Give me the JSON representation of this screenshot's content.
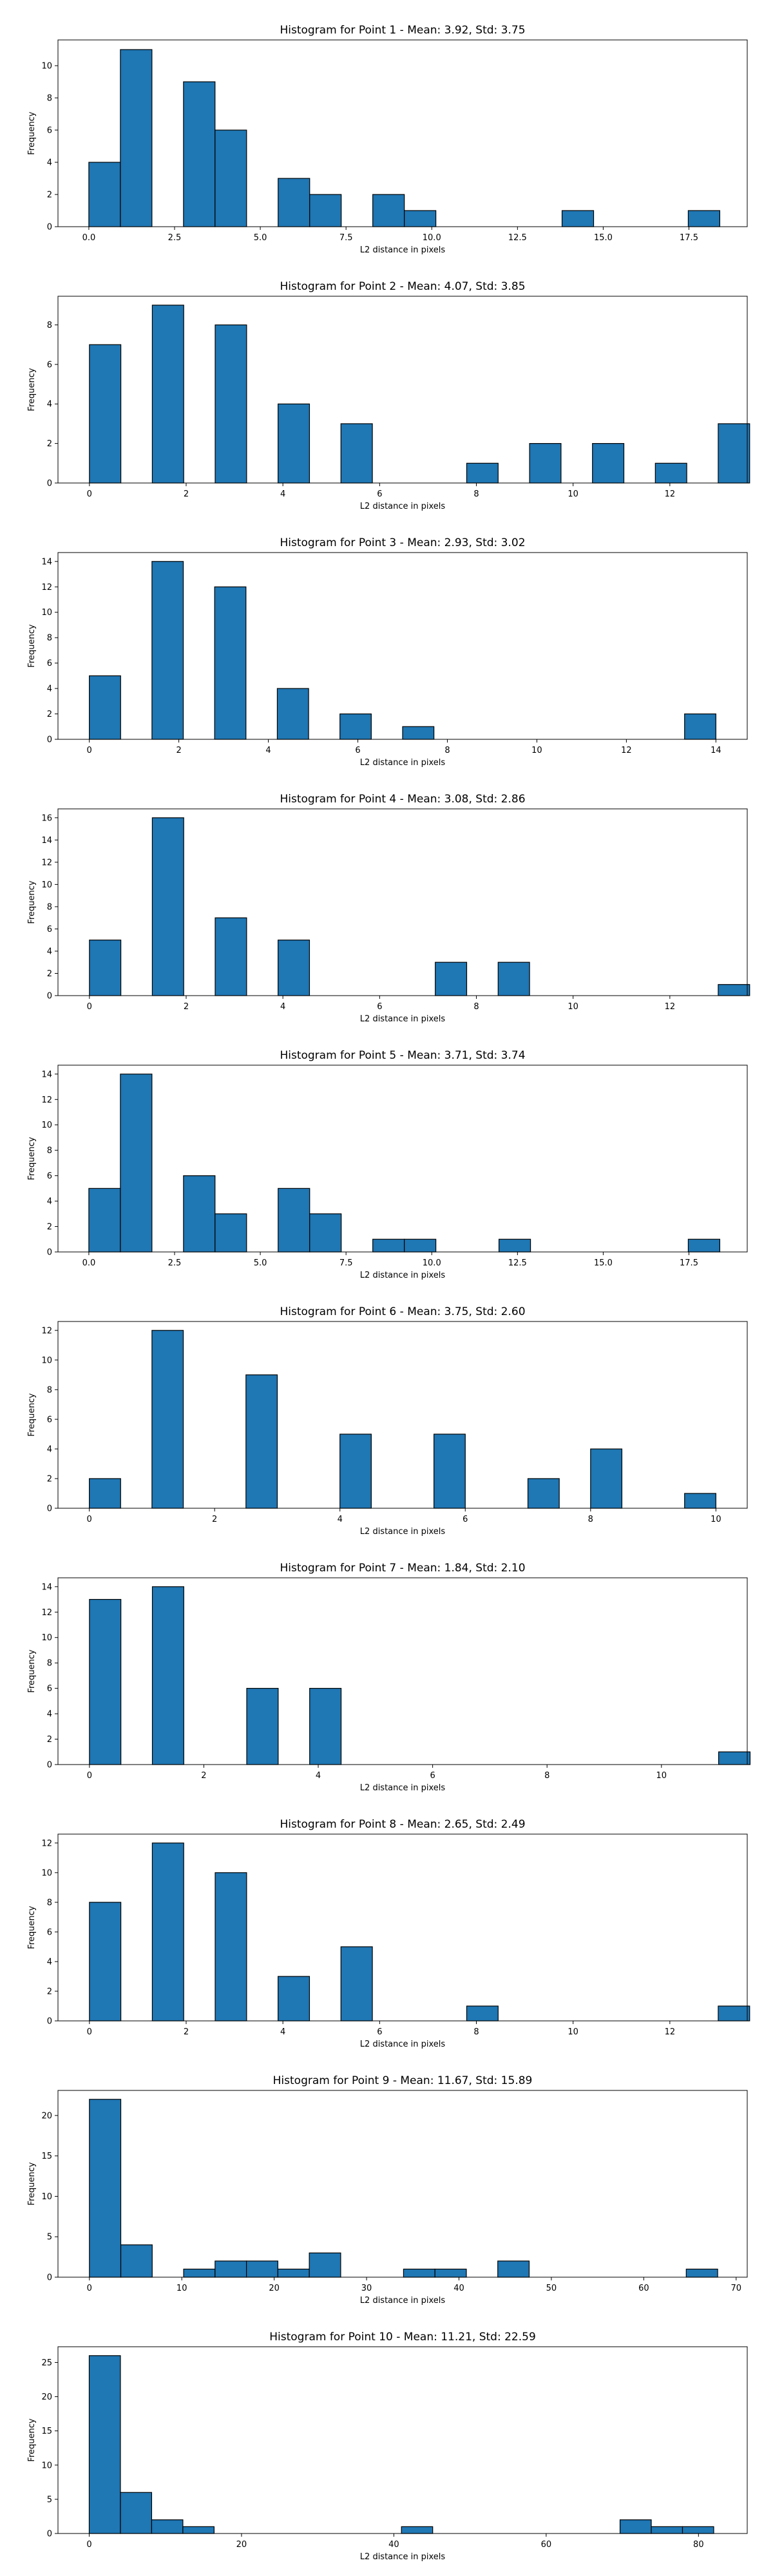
{
  "figure": {
    "background": "#ffffff",
    "bar_color": "#1f77b4",
    "edge_color": "#000000"
  },
  "chart_data": [
    {
      "type": "bar",
      "title": "Histogram for Point 1 - Mean: 3.92, Std: 3.75",
      "xlabel": "L2 distance in pixels",
      "ylabel": "Frequency",
      "xlim": [
        -0.9,
        19.2
      ],
      "ylim": [
        0,
        11.6
      ],
      "xticks": [
        0.0,
        2.5,
        5.0,
        7.5,
        10.0,
        12.5,
        15.0,
        17.5
      ],
      "xtick_labels": [
        "0.0",
        "2.5",
        "5.0",
        "7.5",
        "10.0",
        "12.5",
        "15.0",
        "17.5"
      ],
      "yticks": [
        0,
        2,
        4,
        6,
        8,
        10
      ],
      "bin_start": 0.0,
      "bin_width": 0.92,
      "counts": [
        4,
        11,
        0,
        9,
        6,
        0,
        3,
        2,
        0,
        2,
        1,
        0,
        0,
        0,
        0,
        1,
        0,
        0,
        0,
        1
      ]
    },
    {
      "type": "bar",
      "title": "Histogram for Point 2 - Mean: 4.07, Std: 3.85",
      "xlabel": "L2 distance in pixels",
      "ylabel": "Frequency",
      "xlim": [
        -0.65,
        13.6
      ],
      "ylim": [
        0,
        9.45
      ],
      "xticks": [
        0,
        2,
        4,
        6,
        8,
        10,
        12
      ],
      "xtick_labels": [
        "0",
        "2",
        "4",
        "6",
        "8",
        "10",
        "12"
      ],
      "yticks": [
        0,
        2,
        4,
        6,
        8
      ],
      "bin_start": 0.0,
      "bin_width": 0.65,
      "counts": [
        7,
        0,
        9,
        0,
        8,
        0,
        4,
        0,
        3,
        0,
        0,
        0,
        1,
        0,
        2,
        0,
        2,
        0,
        1,
        0,
        3
      ]
    },
    {
      "type": "bar",
      "title": "Histogram for Point 3 - Mean: 2.93, Std: 3.02",
      "xlabel": "L2 distance in pixels",
      "ylabel": "Frequency",
      "xlim": [
        -0.7,
        14.7
      ],
      "ylim": [
        0,
        14.7
      ],
      "xticks": [
        0,
        2,
        4,
        6,
        8,
        10,
        12,
        14
      ],
      "xtick_labels": [
        "0",
        "2",
        "4",
        "6",
        "8",
        "10",
        "12",
        "14"
      ],
      "yticks": [
        0,
        2,
        4,
        6,
        8,
        10,
        12,
        14
      ],
      "bin_start": 0.0,
      "bin_width": 0.7,
      "counts": [
        5,
        0,
        14,
        0,
        12,
        0,
        4,
        0,
        2,
        0,
        1,
        0,
        0,
        0,
        0,
        0,
        0,
        0,
        0,
        2
      ]
    },
    {
      "type": "bar",
      "title": "Histogram for Point 4 - Mean: 3.08, Std: 2.86",
      "xlabel": "L2 distance in pixels",
      "ylabel": "Frequency",
      "xlim": [
        -0.65,
        13.6
      ],
      "ylim": [
        0,
        16.8
      ],
      "xticks": [
        0,
        2,
        4,
        6,
        8,
        10,
        12
      ],
      "xtick_labels": [
        "0",
        "2",
        "4",
        "6",
        "8",
        "10",
        "12"
      ],
      "yticks": [
        0,
        2,
        4,
        6,
        8,
        10,
        12,
        14,
        16
      ],
      "bin_start": 0.0,
      "bin_width": 0.65,
      "counts": [
        5,
        0,
        16,
        0,
        7,
        0,
        5,
        0,
        0,
        0,
        0,
        3,
        0,
        3,
        0,
        0,
        0,
        0,
        0,
        0,
        1
      ]
    },
    {
      "type": "bar",
      "title": "Histogram for Point 5 - Mean: 3.71, Std: 3.74",
      "xlabel": "L2 distance in pixels",
      "ylabel": "Frequency",
      "xlim": [
        -0.9,
        19.2
      ],
      "ylim": [
        0,
        14.7
      ],
      "xticks": [
        0.0,
        2.5,
        5.0,
        7.5,
        10.0,
        12.5,
        15.0,
        17.5
      ],
      "xtick_labels": [
        "0.0",
        "2.5",
        "5.0",
        "7.5",
        "10.0",
        "12.5",
        "15.0",
        "17.5"
      ],
      "yticks": [
        0,
        2,
        4,
        6,
        8,
        10,
        12,
        14
      ],
      "bin_start": 0.0,
      "bin_width": 0.92,
      "counts": [
        5,
        14,
        0,
        6,
        3,
        0,
        5,
        3,
        0,
        1,
        1,
        0,
        0,
        1,
        0,
        0,
        0,
        0,
        0,
        1
      ]
    },
    {
      "type": "bar",
      "title": "Histogram for Point 6 - Mean: 3.75, Std: 2.60",
      "xlabel": "L2 distance in pixels",
      "ylabel": "Frequency",
      "xlim": [
        -0.5,
        10.5
      ],
      "ylim": [
        0,
        12.6
      ],
      "xticks": [
        0,
        2,
        4,
        6,
        8,
        10
      ],
      "xtick_labels": [
        "0",
        "2",
        "4",
        "6",
        "8",
        "10"
      ],
      "yticks": [
        0,
        2,
        4,
        6,
        8,
        10,
        12
      ],
      "bin_start": 0.0,
      "bin_width": 0.5,
      "counts": [
        2,
        0,
        12,
        0,
        0,
        9,
        0,
        0,
        5,
        0,
        0,
        5,
        0,
        0,
        2,
        0,
        4,
        0,
        0,
        1
      ]
    },
    {
      "type": "bar",
      "title": "Histogram for Point 7 - Mean: 1.84, Std: 2.10",
      "xlabel": "L2 distance in pixels",
      "ylabel": "Frequency",
      "xlim": [
        -0.55,
        11.5
      ],
      "ylim": [
        0,
        14.7
      ],
      "xticks": [
        0,
        2,
        4,
        6,
        8,
        10
      ],
      "xtick_labels": [
        "0",
        "2",
        "4",
        "6",
        "8",
        "10"
      ],
      "yticks": [
        0,
        2,
        4,
        6,
        8,
        10,
        12,
        14
      ],
      "bin_start": 0.0,
      "bin_width": 0.55,
      "counts": [
        13,
        0,
        14,
        0,
        0,
        6,
        0,
        6,
        0,
        0,
        0,
        0,
        0,
        0,
        0,
        0,
        0,
        0,
        0,
        0,
        1
      ]
    },
    {
      "type": "bar",
      "title": "Histogram for Point 8 - Mean: 2.65, Std: 2.49",
      "xlabel": "L2 distance in pixels",
      "ylabel": "Frequency",
      "xlim": [
        -0.65,
        13.6
      ],
      "ylim": [
        0,
        12.6
      ],
      "xticks": [
        0,
        2,
        4,
        6,
        8,
        10,
        12
      ],
      "xtick_labels": [
        "0",
        "2",
        "4",
        "6",
        "8",
        "10",
        "12"
      ],
      "yticks": [
        0,
        2,
        4,
        6,
        8,
        10,
        12
      ],
      "bin_start": 0.0,
      "bin_width": 0.65,
      "counts": [
        8,
        0,
        12,
        0,
        10,
        0,
        3,
        0,
        5,
        0,
        0,
        0,
        1,
        0,
        0,
        0,
        0,
        0,
        0,
        0,
        1
      ]
    },
    {
      "type": "bar",
      "title": "Histogram for Point 9 - Mean: 11.67, Std: 15.89",
      "xlabel": "L2 distance in pixels",
      "ylabel": "Frequency",
      "xlim": [
        -3.4,
        71.2
      ],
      "ylim": [
        0,
        23.1
      ],
      "xticks": [
        0,
        10,
        20,
        30,
        40,
        50,
        60,
        70
      ],
      "xtick_labels": [
        "0",
        "10",
        "20",
        "30",
        "40",
        "50",
        "60",
        "70"
      ],
      "yticks": [
        0,
        5,
        10,
        15,
        20
      ],
      "bin_start": 0.0,
      "bin_width": 3.4,
      "counts": [
        22,
        4,
        0,
        1,
        2,
        2,
        1,
        3,
        0,
        0,
        1,
        1,
        0,
        2,
        0,
        0,
        0,
        0,
        0,
        1
      ]
    },
    {
      "type": "bar",
      "title": "Histogram for Point 10 - Mean: 11.21, Std: 22.59",
      "xlabel": "L2 distance in pixels",
      "ylabel": "Frequency",
      "xlim": [
        -4.1,
        86.4
      ],
      "ylim": [
        0,
        27.3
      ],
      "xticks": [
        0,
        20,
        40,
        60,
        80
      ],
      "xtick_labels": [
        "0",
        "20",
        "40",
        "60",
        "80"
      ],
      "yticks": [
        0,
        5,
        10,
        15,
        20,
        25
      ],
      "bin_start": 0.0,
      "bin_width": 4.1,
      "counts": [
        26,
        6,
        2,
        1,
        0,
        0,
        0,
        0,
        0,
        0,
        1,
        0,
        0,
        0,
        0,
        0,
        0,
        2,
        1,
        1
      ]
    }
  ]
}
